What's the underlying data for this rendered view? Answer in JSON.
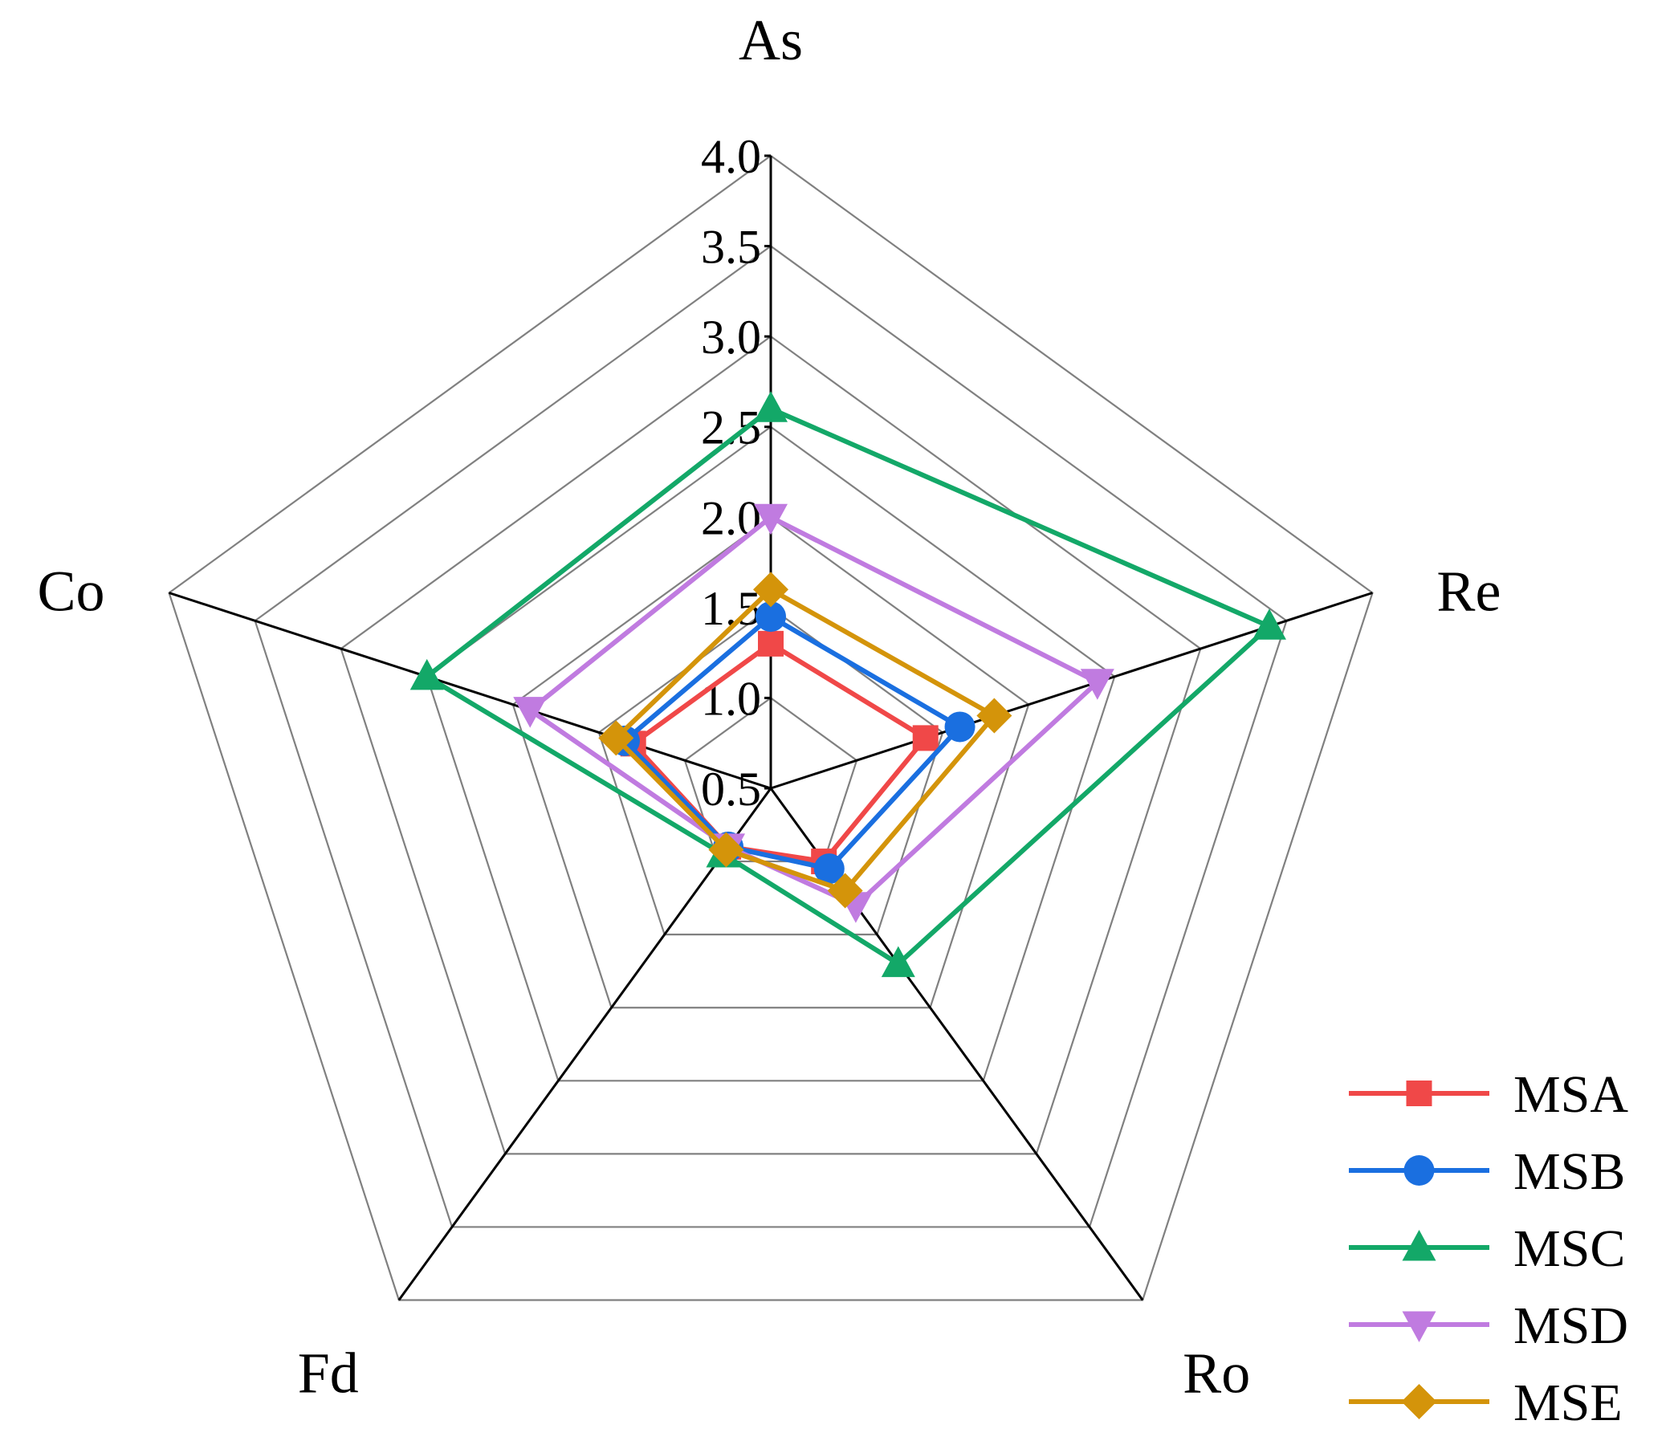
{
  "chart_data": {
    "type": "radar",
    "axes": [
      "As",
      "Re",
      "Ro",
      "Fd",
      "Co"
    ],
    "ticks": [
      "0.5",
      "1.0",
      "1.5",
      "2.0",
      "2.5",
      "3.0",
      "3.5",
      "4.0"
    ],
    "rlim": [
      0.5,
      4.0
    ],
    "grid": true,
    "legend_position": "bottom-right",
    "series": [
      {
        "name": "MSA",
        "color": "#f04848",
        "marker": "square",
        "values": [
          1.3,
          1.4,
          1.0,
          0.9,
          1.3
        ]
      },
      {
        "name": "MSB",
        "color": "#1a6fe0",
        "marker": "circle",
        "values": [
          1.45,
          1.6,
          1.05,
          0.9,
          1.35
        ]
      },
      {
        "name": "MSC",
        "color": "#13a868",
        "marker": "triangle-up",
        "values": [
          2.6,
          3.4,
          1.7,
          0.95,
          2.5
        ]
      },
      {
        "name": "MSD",
        "color": "#c07be0",
        "marker": "triangle-down",
        "values": [
          2.0,
          2.4,
          1.3,
          0.9,
          1.9
        ]
      },
      {
        "name": "MSE",
        "color": "#d4940a",
        "marker": "diamond",
        "values": [
          1.6,
          1.8,
          1.2,
          0.92,
          1.4
        ]
      }
    ]
  }
}
